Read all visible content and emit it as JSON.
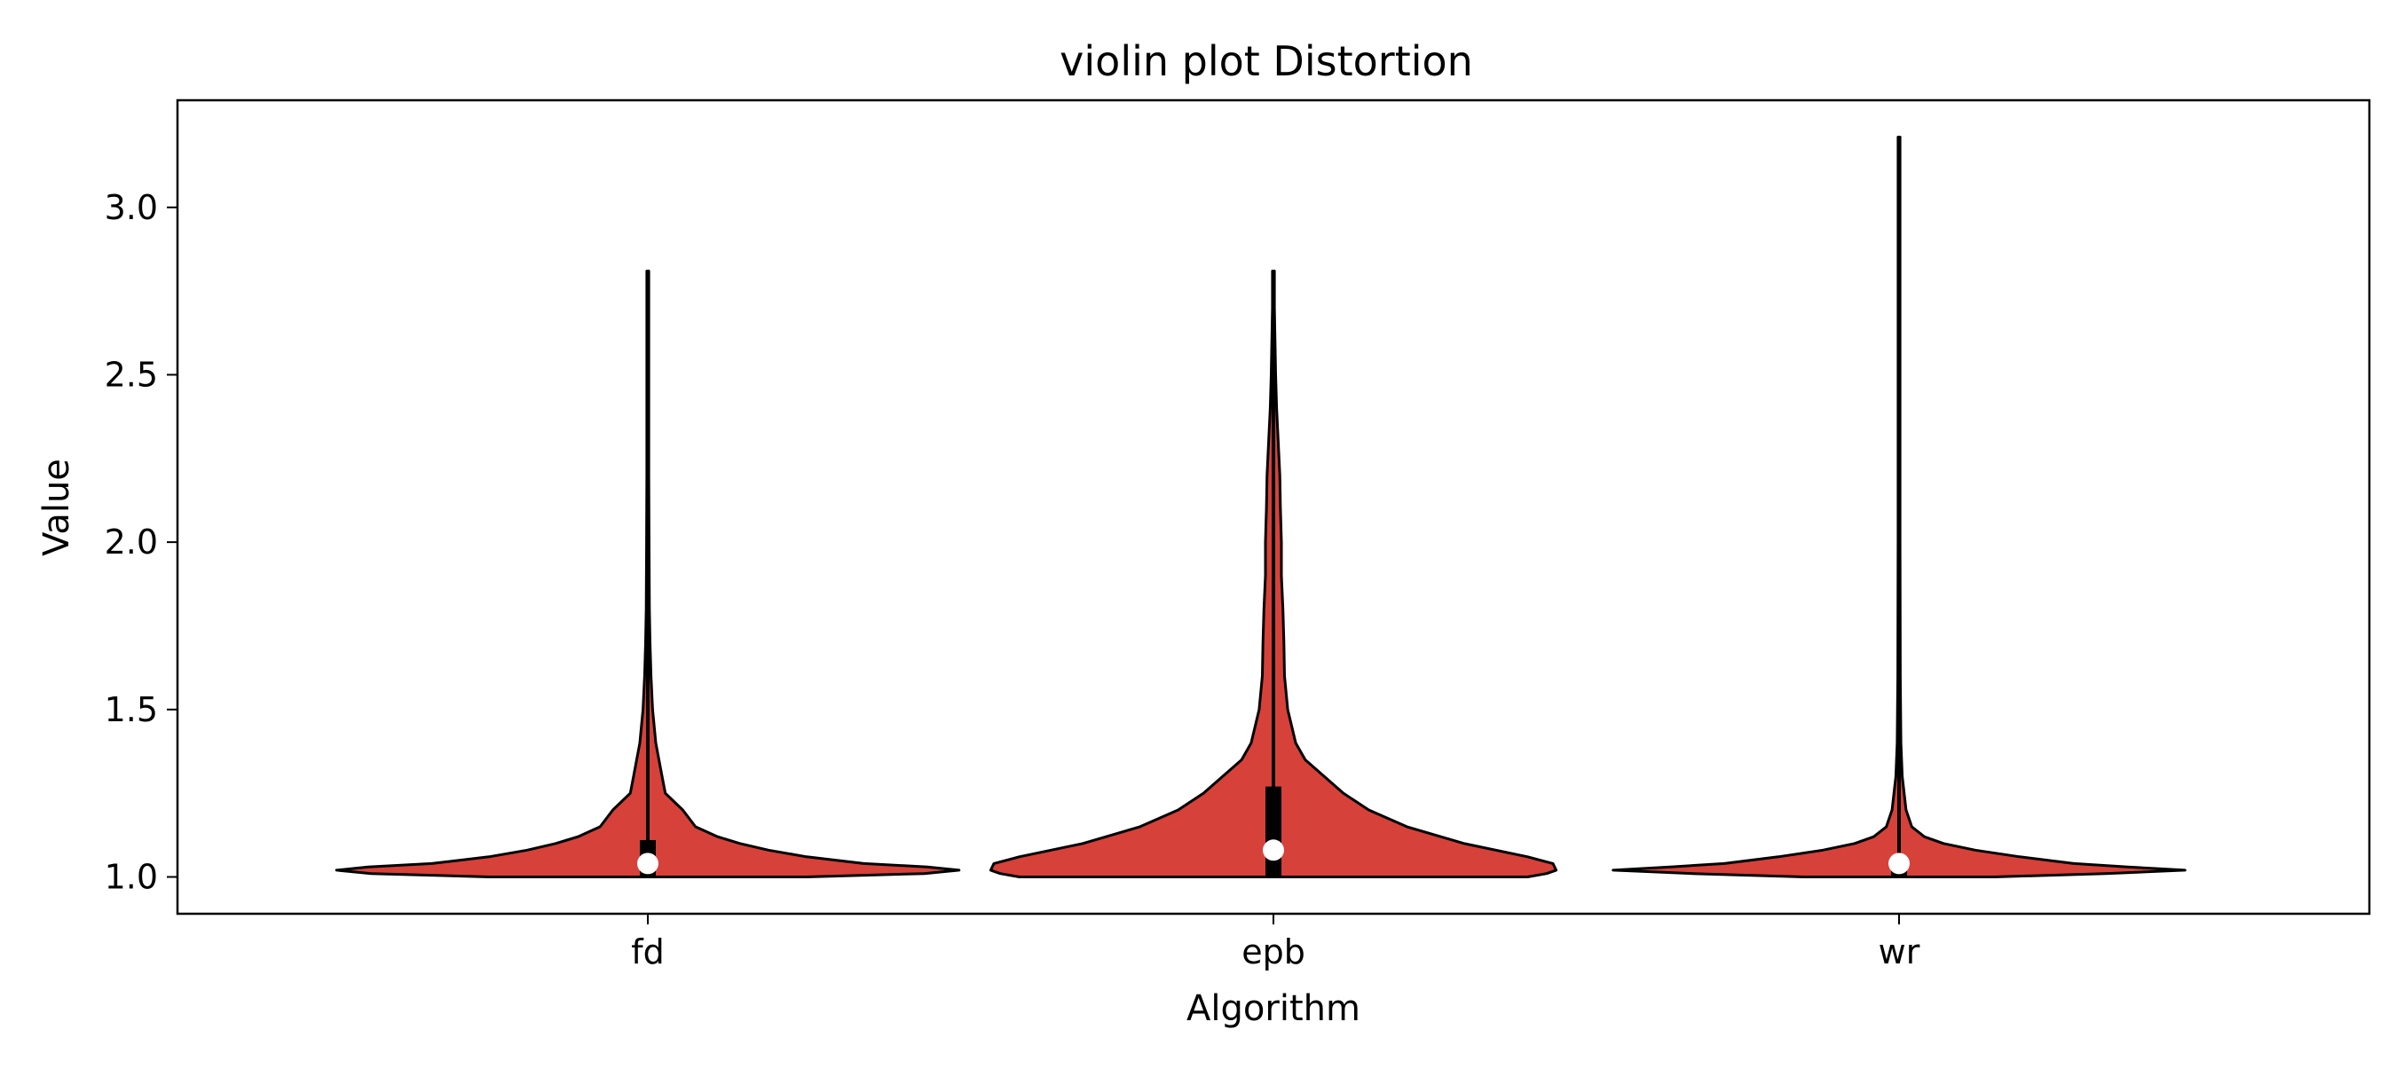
{
  "chart_data": {
    "type": "violin",
    "title": "violin plot Distortion",
    "xlabel": "Algorithm",
    "ylabel": "Value",
    "categories": [
      "fd",
      "epb",
      "wr"
    ],
    "ylim": [
      0.89,
      3.32
    ],
    "yticks": [
      1.0,
      1.5,
      2.0,
      2.5,
      3.0
    ],
    "ytick_labels": [
      "1.0",
      "1.5",
      "2.0",
      "2.5",
      "3.0"
    ],
    "grid": false,
    "legend": "none",
    "colors": {
      "violin_fill": "#d6413a",
      "edge": "#000000",
      "iqr_bar": "#000000",
      "median_marker": "#ffffff"
    },
    "violins": [
      {
        "category": "fd",
        "min": 1.0,
        "max": 2.81,
        "q1": 1.0,
        "q3": 1.11,
        "median": 1.04,
        "density": [
          [
            1.0,
            0.5
          ],
          [
            1.01,
            0.87
          ],
          [
            1.02,
            0.98
          ],
          [
            1.03,
            0.88
          ],
          [
            1.04,
            0.68
          ],
          [
            1.06,
            0.5
          ],
          [
            1.08,
            0.38
          ],
          [
            1.1,
            0.29
          ],
          [
            1.12,
            0.22
          ],
          [
            1.15,
            0.15
          ],
          [
            1.2,
            0.11
          ],
          [
            1.25,
            0.055
          ],
          [
            1.3,
            0.045
          ],
          [
            1.4,
            0.025
          ],
          [
            1.5,
            0.015
          ],
          [
            1.6,
            0.01
          ],
          [
            1.7,
            0.007
          ],
          [
            1.8,
            0.005
          ],
          [
            2.0,
            0.004
          ],
          [
            2.2,
            0.003
          ],
          [
            2.5,
            0.003
          ],
          [
            2.81,
            0.003
          ]
        ]
      },
      {
        "category": "epb",
        "min": 1.0,
        "max": 2.81,
        "q1": 1.0,
        "q3": 1.27,
        "median": 1.08,
        "density": [
          [
            1.0,
            0.8
          ],
          [
            1.01,
            0.86
          ],
          [
            1.02,
            0.89
          ],
          [
            1.04,
            0.88
          ],
          [
            1.06,
            0.8
          ],
          [
            1.1,
            0.6
          ],
          [
            1.15,
            0.42
          ],
          [
            1.2,
            0.3
          ],
          [
            1.25,
            0.22
          ],
          [
            1.3,
            0.16
          ],
          [
            1.35,
            0.1
          ],
          [
            1.4,
            0.07
          ],
          [
            1.5,
            0.045
          ],
          [
            1.6,
            0.035
          ],
          [
            1.7,
            0.033
          ],
          [
            1.8,
            0.03
          ],
          [
            1.9,
            0.025
          ],
          [
            2.0,
            0.025
          ],
          [
            2.1,
            0.022
          ],
          [
            2.2,
            0.02
          ],
          [
            2.3,
            0.015
          ],
          [
            2.4,
            0.01
          ],
          [
            2.5,
            0.007
          ],
          [
            2.6,
            0.005
          ],
          [
            2.7,
            0.003
          ],
          [
            2.81,
            0.003
          ]
        ]
      },
      {
        "category": "wr",
        "min": 1.0,
        "max": 3.21,
        "q1": 1.0,
        "q3": 1.06,
        "median": 1.04,
        "density": [
          [
            1.0,
            0.3
          ],
          [
            1.01,
            0.65
          ],
          [
            1.02,
            0.9
          ],
          [
            1.03,
            0.72
          ],
          [
            1.04,
            0.55
          ],
          [
            1.06,
            0.38
          ],
          [
            1.08,
            0.24
          ],
          [
            1.1,
            0.14
          ],
          [
            1.12,
            0.08
          ],
          [
            1.15,
            0.04
          ],
          [
            1.2,
            0.022
          ],
          [
            1.3,
            0.01
          ],
          [
            1.4,
            0.006
          ],
          [
            1.6,
            0.004
          ],
          [
            2.0,
            0.003
          ],
          [
            2.5,
            0.003
          ],
          [
            3.0,
            0.003
          ],
          [
            3.21,
            0.003
          ]
        ]
      }
    ]
  }
}
